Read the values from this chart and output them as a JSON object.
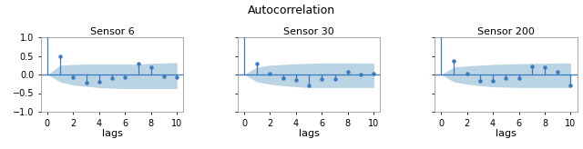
{
  "title": "Autocorrelation",
  "sensors": [
    "Sensor 6",
    "Sensor 30",
    "Sensor 200"
  ],
  "lags": [
    0,
    1,
    2,
    3,
    4,
    5,
    6,
    7,
    8,
    9,
    10
  ],
  "acf_sensor6": [
    1.0,
    0.5,
    -0.08,
    -0.22,
    -0.2,
    -0.1,
    -0.08,
    0.3,
    0.2,
    -0.06,
    -0.08
  ],
  "acf_sensor30": [
    1.0,
    0.3,
    0.03,
    -0.1,
    -0.15,
    -0.3,
    -0.12,
    -0.12,
    0.08,
    0.01,
    0.02
  ],
  "acf_sensor200": [
    1.0,
    0.36,
    0.02,
    -0.16,
    -0.18,
    -0.1,
    -0.1,
    0.22,
    0.2,
    0.08,
    -0.3
  ],
  "conf_upper6": [
    0.0,
    0.25,
    0.27,
    0.28,
    0.28,
    0.28,
    0.28,
    0.28,
    0.3,
    0.31,
    0.32
  ],
  "conf_lower6": [
    0.0,
    -0.2,
    -0.28,
    -0.32,
    -0.35,
    -0.37,
    -0.38,
    -0.38,
    -0.38,
    -0.38,
    -0.38
  ],
  "conf_upper30": [
    0.0,
    0.2,
    0.25,
    0.27,
    0.29,
    0.3,
    0.31,
    0.31,
    0.31,
    0.31,
    0.31
  ],
  "conf_lower30": [
    0.0,
    -0.2,
    -0.26,
    -0.3,
    -0.33,
    -0.35,
    -0.35,
    -0.35,
    -0.35,
    -0.35,
    -0.35
  ],
  "conf_upper200": [
    0.0,
    0.2,
    0.23,
    0.25,
    0.27,
    0.28,
    0.29,
    0.3,
    0.3,
    0.31,
    0.31
  ],
  "conf_lower200": [
    0.0,
    -0.2,
    -0.26,
    -0.3,
    -0.33,
    -0.34,
    -0.35,
    -0.35,
    -0.35,
    -0.35,
    -0.35
  ],
  "stem_color": "#3a7abf",
  "fill_color": "#aecde0",
  "line_color": "#3a7abf",
  "xlabel": "lags",
  "ylim": [
    -1.0,
    1.0
  ],
  "yticks": [
    -1.0,
    -0.5,
    0.0,
    0.5,
    1.0
  ],
  "xticks": [
    0,
    2,
    4,
    6,
    8,
    10
  ],
  "title_fontsize": 9,
  "sensor_title_fontsize": 8,
  "label_fontsize": 8,
  "tick_fontsize": 7
}
